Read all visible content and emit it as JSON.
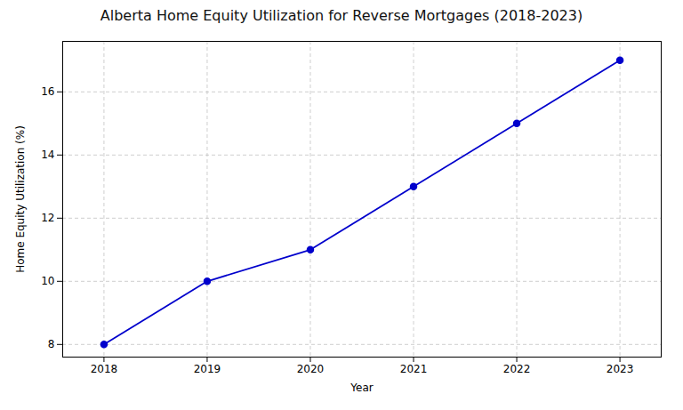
{
  "chart_data": {
    "type": "line",
    "title": "Alberta Home Equity Utilization for Reverse Mortgages (2018-2023)",
    "xlabel": "Year",
    "ylabel": "Home Equity Utilization (%)",
    "x": [
      2018,
      2019,
      2020,
      2021,
      2022,
      2023
    ],
    "values": [
      8,
      10,
      11,
      13,
      15,
      17
    ],
    "color": "#0000CC",
    "marker": "circle",
    "xlim": [
      2017.6,
      2023.4
    ],
    "ylim": [
      7.6,
      17.6
    ],
    "xticks": [
      2018,
      2019,
      2020,
      2021,
      2022,
      2023
    ],
    "yticks": [
      8,
      10,
      12,
      14,
      16
    ],
    "grid": true
  }
}
